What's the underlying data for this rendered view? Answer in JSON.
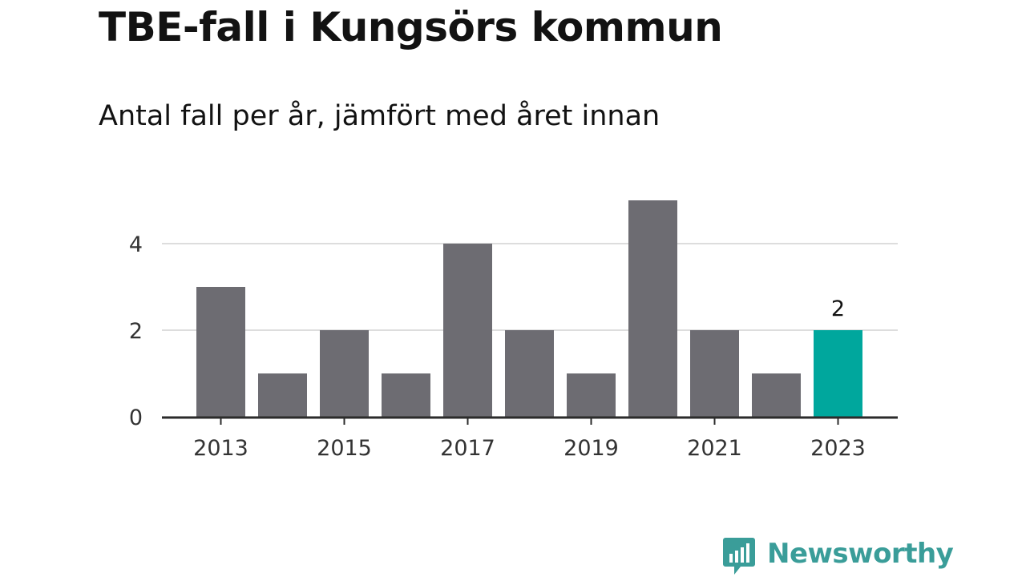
{
  "chart_data": {
    "type": "bar",
    "title": "TBE-fall i Kungsörs kommun",
    "subtitle": "Antal fall per år, jämfört med året innan",
    "xlabel": "",
    "ylabel": "",
    "categories": [
      "2013",
      "2014",
      "2015",
      "2016",
      "2017",
      "2018",
      "2019",
      "2020",
      "2021",
      "2022",
      "2023"
    ],
    "values": [
      3,
      1,
      2,
      1,
      4,
      2,
      1,
      5,
      2,
      1,
      2
    ],
    "x_tick_labels": [
      "2013",
      "2015",
      "2017",
      "2019",
      "2021",
      "2023"
    ],
    "y_tick_labels": [
      "0",
      "2",
      "4"
    ],
    "ylim": [
      0,
      5
    ],
    "grid": true,
    "highlight": {
      "category": "2023",
      "label": "2"
    },
    "colors": {
      "bar": "#6d6c72",
      "highlight": "#00a79d",
      "grid": "#dddddd",
      "axis": "#2b2b2b"
    }
  },
  "brand": {
    "name": "Newsworthy",
    "icon": "bar-chart-speech-bubble-icon",
    "color": "#3a9d99"
  }
}
